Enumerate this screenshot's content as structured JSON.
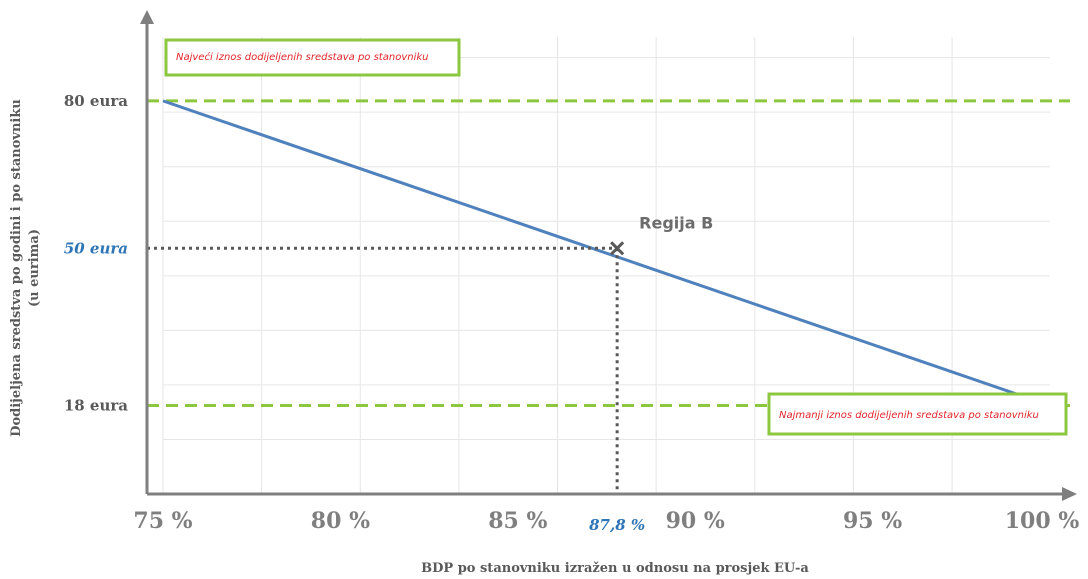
{
  "chart_data": {
    "type": "line",
    "xlabel": "BDP po stanovniku izražen u odnosu na prosjek EU-a",
    "ylabel_line1": "Dodijeljena sredstva po godini i po stanovniku",
    "ylabel_line2": "(u eurima)",
    "xlim": [
      75,
      100
    ],
    "ylim": [
      0,
      93
    ],
    "x_ticks": [
      {
        "value": 75,
        "label": "75 %"
      },
      {
        "value": 80,
        "label": "80 %"
      },
      {
        "value": 85,
        "label": "85 %"
      },
      {
        "value": 90,
        "label": "90 %"
      },
      {
        "value": 95,
        "label": "95 %"
      },
      {
        "value": 100,
        "label": "100 %"
      }
    ],
    "y_ticks": [
      {
        "value": 80,
        "label": "80 eura"
      },
      {
        "value": 18,
        "label": "18 eura"
      }
    ],
    "series": [
      {
        "x": [
          75,
          100
        ],
        "y": [
          80,
          18
        ],
        "color": "#4f81bd"
      }
    ],
    "max_line": {
      "value": 80,
      "label": "Najveći iznos dodijeljenih sredstava po stanovniku",
      "color": "#8dc63f"
    },
    "min_line": {
      "value": 18,
      "label": "Najmanji iznos dodijeljenih sredstava po stanovniku",
      "color": "#8dc63f"
    },
    "point": {
      "x": 87.8,
      "y": 50,
      "label": "Regija B",
      "x_label": "87,8 %",
      "y_label": "50 eura"
    }
  }
}
